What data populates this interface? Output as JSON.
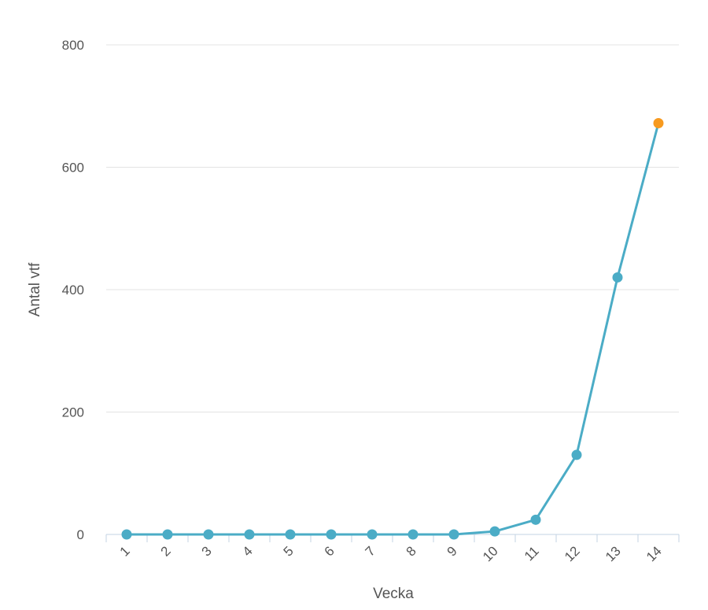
{
  "chart_data": {
    "type": "line",
    "title": "",
    "xlabel": "Vecka",
    "ylabel": "Antal vtf",
    "categories": [
      "1",
      "2",
      "3",
      "4",
      "5",
      "6",
      "7",
      "8",
      "9",
      "10",
      "11",
      "12",
      "13",
      "14"
    ],
    "series": [
      {
        "values": [
          0,
          0,
          0,
          0,
          0,
          0,
          0,
          0,
          0,
          5,
          24,
          130,
          420,
          672
        ]
      }
    ],
    "ylim": [
      0,
      800
    ],
    "yticks": [
      0,
      200,
      400,
      600,
      800
    ],
    "grid": true,
    "legend": "none",
    "highlight_last_point": true,
    "colors": {
      "line": "#4bacc6",
      "point": "#4bacc6",
      "highlight": "#f79a1f",
      "grid": "#e3e3e3",
      "axis": "#c3d3e3",
      "text": "#555555"
    }
  }
}
